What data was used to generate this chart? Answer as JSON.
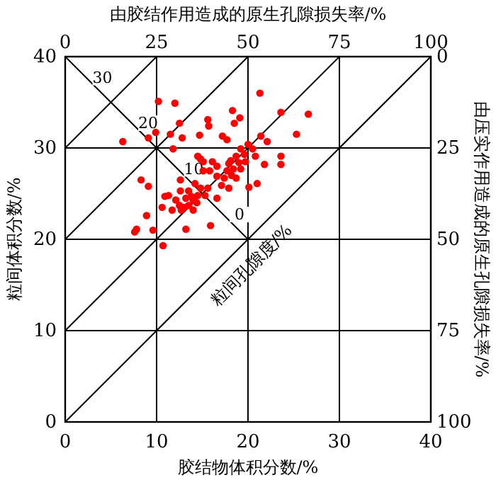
{
  "chart_data": {
    "type": "scatter",
    "x2label": "由胶结作用造成的原生孔隙损失率/%",
    "xlabel": "胶结物体积分数/%",
    "ylabel": "粒间体积分数/%",
    "y2label": "由压实作用造成的原生孔隙损失率/%",
    "xlim": [
      0,
      40
    ],
    "ylim": [
      0,
      40
    ],
    "xticks": [
      0,
      10,
      20,
      30,
      40
    ],
    "yticks": [
      0,
      10,
      20,
      30,
      40
    ],
    "x2lim": [
      0,
      100
    ],
    "x2ticks": [
      0,
      25,
      50,
      75,
      100
    ],
    "y2lim": [
      100,
      0
    ],
    "y2ticks": [
      0,
      25,
      50,
      75,
      100
    ],
    "grid": true,
    "series": [
      {
        "type": "line",
        "color": "#000000",
        "x": [
          0,
          10
        ],
        "values": [
          30,
          40
        ]
      },
      {
        "type": "line",
        "color": "#000000",
        "x": [
          0,
          20
        ],
        "values": [
          20,
          40
        ]
      },
      {
        "type": "line",
        "color": "#000000",
        "x": [
          0,
          30
        ],
        "values": [
          10,
          40
        ]
      },
      {
        "type": "line",
        "color": "#000000",
        "x": [
          0,
          40
        ],
        "values": [
          0,
          40
        ]
      },
      {
        "type": "line",
        "color": "#000000",
        "x": [
          0,
          20
        ],
        "values": [
          40,
          20
        ]
      },
      {
        "color": "#ff0000",
        "marker": "circle",
        "x": [
          6.3,
          10.2,
          12.0,
          12.5,
          9.1,
          9.9,
          11.5,
          12.8,
          11.8,
          15.6,
          15.7,
          14.7,
          17.2,
          17.7,
          18.3,
          18.5,
          19.1,
          21.3,
          23.6,
          26.6,
          25.3,
          21.4,
          22.1,
          23.6,
          23.6,
          21.8,
          21.0,
          20.1,
          20.0,
          19.2,
          19.6,
          18.7,
          18.1,
          19.0,
          17.9,
          19.7,
          20.5,
          20.8,
          18.4,
          19.2,
          17.7,
          18.2,
          17.4,
          18.7,
          17.1,
          17.9,
          16.6,
          16.1,
          15.1,
          14.5,
          14.8,
          15.8,
          15.1,
          16.6,
          12.6,
          14.2,
          14.8,
          15.6,
          13.5,
          12.6,
          14.5,
          13.8,
          13.2,
          14.0,
          15.3,
          14.4,
          13.5,
          12.5,
          13.0,
          14.0,
          16.6,
          10.9,
          11.3,
          12.1,
          10.6,
          8.3,
          9.1,
          8.9,
          9.6,
          7.8,
          7.6,
          13.2,
          15.9,
          12.7,
          11.7,
          10.7
        ],
        "values": [
          30.7,
          35.1,
          34.9,
          32.7,
          31.1,
          31.7,
          31.5,
          31.1,
          29.9,
          33.1,
          32.4,
          31.4,
          31.3,
          30.9,
          34.1,
          32.7,
          33.3,
          36.0,
          33.9,
          33.7,
          31.5,
          31.3,
          30.7,
          29.1,
          28.2,
          28.2,
          26.1,
          25.7,
          30.4,
          29.9,
          29.3,
          29.1,
          28.6,
          28.4,
          28.3,
          28.5,
          29.9,
          29.1,
          27.7,
          27.7,
          27.5,
          27.0,
          26.7,
          26.7,
          25.9,
          25.6,
          28.0,
          28.5,
          28.5,
          29.1,
          28.8,
          27.5,
          27.5,
          26.9,
          26.5,
          26.1,
          25.6,
          25.6,
          25.3,
          25.3,
          24.8,
          24.7,
          24.5,
          24.3,
          24.8,
          24.0,
          23.7,
          23.7,
          23.5,
          23.2,
          24.5,
          24.7,
          24.8,
          24.3,
          23.5,
          26.5,
          25.8,
          22.6,
          21.0,
          21.1,
          20.8,
          21.1,
          21.5,
          23.2,
          23.2,
          19.3
        ]
      }
    ],
    "annotations": [
      {
        "text": "30",
        "x": 5,
        "y": 35
      },
      {
        "text": "20",
        "x": 10,
        "y": 30
      },
      {
        "text": "10",
        "x": 15,
        "y": 25
      },
      {
        "text": "0",
        "x": 20,
        "y": 20
      },
      "粒间孔隙度/%"
    ]
  }
}
